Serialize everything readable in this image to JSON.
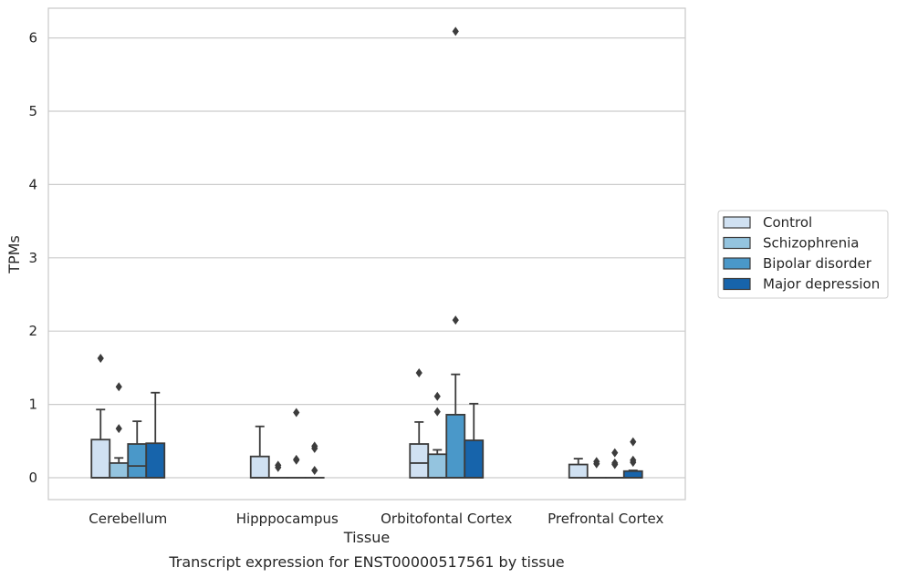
{
  "chart_data": {
    "type": "box",
    "xlabel": "Tissue",
    "ylabel": "TPMs",
    "caption": "Transcript expression for ENST00000517561 by tissue",
    "ylim": [
      -0.3,
      6.4
    ],
    "yticks": [
      0,
      1,
      2,
      3,
      4,
      5,
      6
    ],
    "grid": "horizontal",
    "legend_position": "right",
    "categories": [
      "Cerebellum",
      "Hipppocampus",
      "Orbitofontal Cortex",
      "Prefrontal Cortex"
    ],
    "series": [
      {
        "name": "Control",
        "color": "#d0e1f2",
        "boxes": [
          {
            "q1": 0,
            "median": 0,
            "q3": 0.52,
            "whisker_low": 0,
            "whisker_high": 0.93,
            "outliers": [
              1.63
            ]
          },
          {
            "q1": 0,
            "median": 0,
            "q3": 0.29,
            "whisker_low": 0,
            "whisker_high": 0.7,
            "outliers": []
          },
          {
            "q1": 0,
            "median": 0.2,
            "q3": 0.46,
            "whisker_low": 0,
            "whisker_high": 0.76,
            "outliers": [
              1.43
            ]
          },
          {
            "q1": 0,
            "median": 0,
            "q3": 0.18,
            "whisker_low": 0,
            "whisker_high": 0.26,
            "outliers": []
          }
        ]
      },
      {
        "name": "Schizophrenia",
        "color": "#94c4df",
        "boxes": [
          {
            "q1": 0,
            "median": 0,
            "q3": 0.2,
            "whisker_low": 0,
            "whisker_high": 0.27,
            "outliers": [
              1.24,
              0.67
            ]
          },
          {
            "q1": 0,
            "median": 0,
            "q3": 0,
            "whisker_low": 0,
            "whisker_high": 0,
            "outliers": [
              0.17,
              0.14
            ]
          },
          {
            "q1": 0,
            "median": 0,
            "q3": 0.32,
            "whisker_low": 0,
            "whisker_high": 0.38,
            "outliers": [
              1.11,
              0.9
            ]
          },
          {
            "q1": 0,
            "median": 0,
            "q3": 0,
            "whisker_low": 0,
            "whisker_high": 0,
            "outliers": [
              0.22,
              0.19
            ]
          }
        ]
      },
      {
        "name": "Bipolar disorder",
        "color": "#4a98c9",
        "boxes": [
          {
            "q1": 0,
            "median": 0.16,
            "q3": 0.46,
            "whisker_low": 0,
            "whisker_high": 0.77,
            "outliers": []
          },
          {
            "q1": 0,
            "median": 0,
            "q3": 0,
            "whisker_low": 0,
            "whisker_high": 0,
            "outliers": [
              0.89,
              0.25,
              0.24
            ]
          },
          {
            "q1": 0,
            "median": 0,
            "q3": 0.86,
            "whisker_low": 0,
            "whisker_high": 1.41,
            "outliers": [
              6.09,
              2.15
            ]
          },
          {
            "q1": 0,
            "median": 0,
            "q3": 0,
            "whisker_low": 0,
            "whisker_high": 0,
            "outliers": [
              0.34,
              0.2,
              0.18
            ]
          }
        ]
      },
      {
        "name": "Major depression",
        "color": "#1764ab",
        "boxes": [
          {
            "q1": 0,
            "median": 0,
            "q3": 0.47,
            "whisker_low": 0,
            "whisker_high": 1.16,
            "outliers": []
          },
          {
            "q1": 0,
            "median": 0,
            "q3": 0,
            "whisker_low": 0,
            "whisker_high": 0,
            "outliers": [
              0.43,
              0.4,
              0.1
            ]
          },
          {
            "q1": 0,
            "median": 0,
            "q3": 0.51,
            "whisker_low": 0,
            "whisker_high": 1.01,
            "outliers": []
          },
          {
            "q1": 0,
            "median": 0,
            "q3": 0.09,
            "whisker_low": 0,
            "whisker_high": 0.1,
            "outliers": [
              0.49,
              0.24,
              0.21
            ]
          }
        ]
      }
    ]
  }
}
